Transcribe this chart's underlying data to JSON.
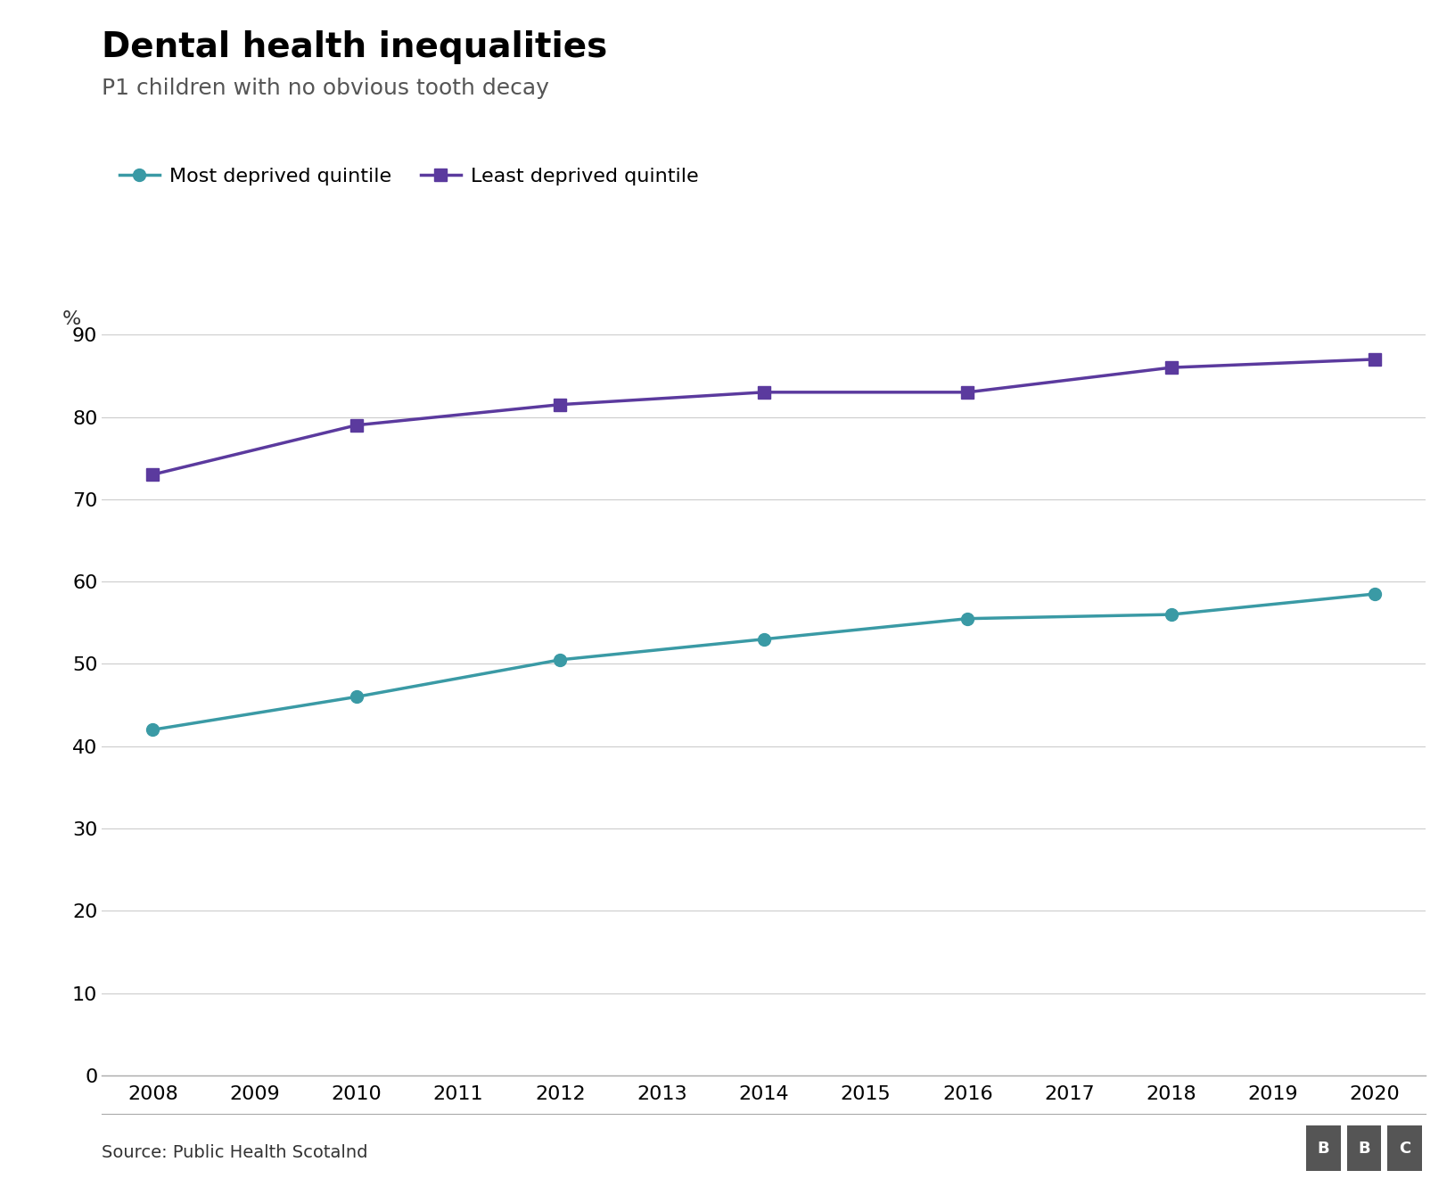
{
  "title": "Dental health inequalities",
  "subtitle": "P1 children with no obvious tooth decay",
  "source": "Source: Public Health Scotalnd",
  "ylabel": "%",
  "ylim": [
    0,
    90
  ],
  "yticks": [
    0,
    10,
    20,
    30,
    40,
    50,
    60,
    70,
    80,
    90
  ],
  "xlim": [
    2007.5,
    2020.5
  ],
  "xticks": [
    2008,
    2009,
    2010,
    2011,
    2012,
    2013,
    2014,
    2015,
    2016,
    2017,
    2018,
    2019,
    2020
  ],
  "most_deprived": {
    "label": "Most deprived quintile",
    "color": "#3a9aa5",
    "marker": "o",
    "x": [
      2008,
      2010,
      2012,
      2014,
      2016,
      2018,
      2020
    ],
    "y": [
      42,
      46,
      50.5,
      53,
      55.5,
      56,
      58.5
    ]
  },
  "least_deprived": {
    "label": "Least deprived quintile",
    "color": "#5b3a9e",
    "marker": "s",
    "x": [
      2008,
      2010,
      2012,
      2014,
      2016,
      2018,
      2020
    ],
    "y": [
      73,
      79,
      81.5,
      83,
      83,
      86,
      87
    ]
  },
  "background_color": "#ffffff",
  "grid_color": "#cccccc",
  "title_fontsize": 28,
  "subtitle_fontsize": 18,
  "tick_fontsize": 16,
  "legend_fontsize": 16,
  "source_fontsize": 14,
  "linewidth": 2.5,
  "markersize": 10
}
